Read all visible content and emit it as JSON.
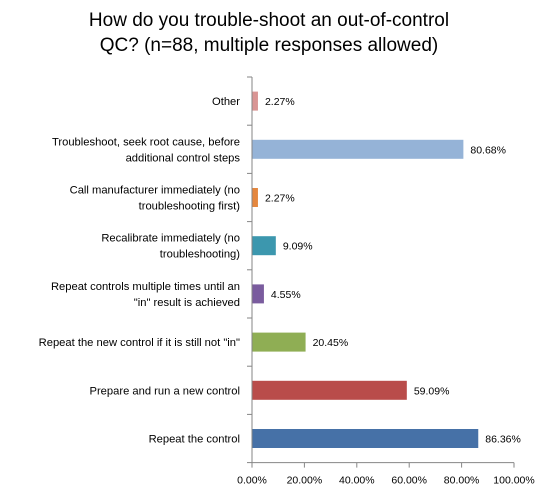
{
  "chart_data": {
    "type": "bar",
    "orientation": "horizontal",
    "title": "How do you trouble-shoot an out-of-control QC?  (n=88, multiple responses allowed)",
    "title_lines": [
      "How do you trouble-shoot an out-of-control",
      "QC?  (n=88, multiple responses allowed)"
    ],
    "xlabel": "",
    "ylabel": "",
    "xlim": [
      0,
      100
    ],
    "grid": false,
    "legend": "none",
    "tick_labels": [
      "0.00%",
      "20.00%",
      "40.00%",
      "60.00%",
      "80.00%",
      "100.00%"
    ],
    "categories": [
      {
        "label_lines": [
          "Other"
        ],
        "value": 2.27,
        "data_label": "2.27%",
        "color": "#D99594"
      },
      {
        "label_lines": [
          "Troubleshoot, seek root cause, before",
          "additional control steps"
        ],
        "value": 80.68,
        "data_label": "80.68%",
        "color": "#95B3D7"
      },
      {
        "label_lines": [
          "Call  manufacturer immediately (no",
          "troubleshooting first)"
        ],
        "value": 2.27,
        "data_label": "2.27%",
        "color": "#E4873F"
      },
      {
        "label_lines": [
          "Recalibrate immediately (no",
          "troubleshooting)"
        ],
        "value": 9.09,
        "data_label": "9.09%",
        "color": "#3C97AE"
      },
      {
        "label_lines": [
          "Repeat controls multiple times until an",
          "\"in\" result is achieved"
        ],
        "value": 4.55,
        "data_label": "4.55%",
        "color": "#7A5C9E"
      },
      {
        "label_lines": [
          "Repeat the new control if it is still not \"in\""
        ],
        "value": 20.45,
        "data_label": "20.45%",
        "color": "#8FAE54"
      },
      {
        "label_lines": [
          "Prepare and run a new control"
        ],
        "value": 59.09,
        "data_label": "59.09%",
        "color": "#B94C4A"
      },
      {
        "label_lines": [
          "Repeat the control"
        ],
        "value": 86.36,
        "data_label": "86.36%",
        "color": "#4671A7"
      }
    ]
  }
}
